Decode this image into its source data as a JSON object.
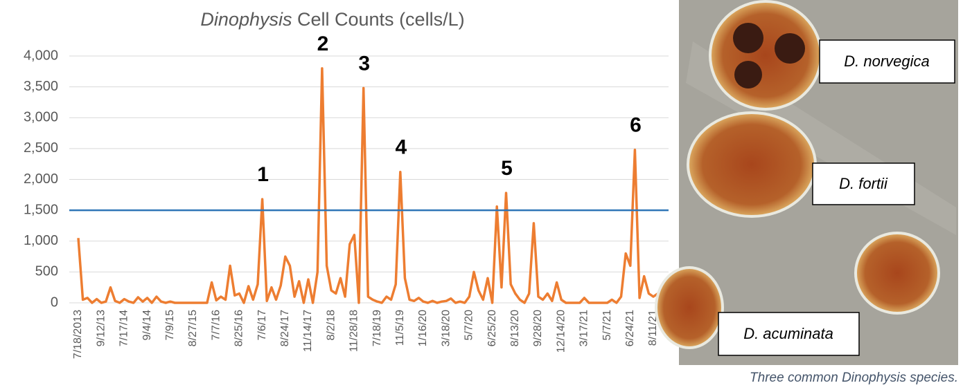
{
  "chart_data": {
    "type": "line",
    "title": {
      "italic": "Dinophysis",
      "text": "Cell Counts (cells/L)"
    },
    "categories": [
      "7/18/2013",
      null,
      null,
      null,
      null,
      "9/12/13",
      null,
      null,
      null,
      null,
      "7/17/14",
      null,
      null,
      null,
      null,
      "9/4/14",
      null,
      null,
      null,
      null,
      "7/9/15",
      null,
      null,
      null,
      null,
      "8/27/15",
      null,
      null,
      null,
      null,
      "7/7/16",
      null,
      null,
      null,
      null,
      "8/25/16",
      null,
      null,
      null,
      null,
      "7/6/17",
      null,
      null,
      null,
      null,
      "8/24/17",
      null,
      null,
      null,
      null,
      "11/14/17",
      null,
      null,
      null,
      null,
      "8/2/18",
      null,
      null,
      null,
      null,
      "11/28/18",
      null,
      null,
      null,
      null,
      "7/18/19",
      null,
      null,
      null,
      null,
      "11/5/19",
      null,
      null,
      null,
      null,
      "1/16/20",
      null,
      null,
      null,
      null,
      "3/18/20",
      null,
      null,
      null,
      null,
      "5/7/20",
      null,
      null,
      null,
      null,
      "6/25/20",
      null,
      null,
      null,
      null,
      "8/13/20",
      null,
      null,
      null,
      null,
      "9/28/20",
      null,
      null,
      null,
      null,
      "12/14/20",
      null,
      null,
      null,
      null,
      "3/17/21",
      null,
      null,
      null,
      null,
      "5/7/21",
      null,
      null,
      null,
      null,
      "6/24/21",
      null,
      null,
      null,
      null,
      "8/11/21",
      null,
      null
    ],
    "values": [
      1050,
      50,
      80,
      0,
      60,
      0,
      20,
      250,
      30,
      0,
      60,
      20,
      0,
      90,
      20,
      80,
      0,
      100,
      20,
      0,
      20,
      0,
      0,
      0,
      0,
      0,
      0,
      0,
      0,
      330,
      40,
      100,
      50,
      600,
      120,
      150,
      0,
      270,
      50,
      300,
      1680,
      30,
      250,
      50,
      280,
      750,
      600,
      100,
      350,
      0,
      380,
      0,
      500,
      3800,
      600,
      200,
      150,
      400,
      100,
      950,
      1100,
      0,
      3480,
      100,
      50,
      20,
      0,
      100,
      50,
      300,
      2120,
      400,
      50,
      30,
      80,
      20,
      0,
      30,
      0,
      20,
      30,
      70,
      0,
      20,
      0,
      100,
      500,
      200,
      50,
      400,
      0,
      1560,
      250,
      1780,
      300,
      150,
      50,
      0,
      150,
      1290,
      100,
      50,
      150,
      30,
      330,
      50,
      0,
      0,
      0,
      0,
      80,
      0,
      0,
      0,
      0,
      0,
      50,
      0,
      100,
      800,
      600,
      2480,
      80,
      430,
      150,
      100,
      150,
      200
    ],
    "color": "#ed7d31",
    "ylim": [
      0,
      4000
    ],
    "yticks": [
      0,
      500,
      {
        "value": 1000,
        "label": "1,000"
      },
      {
        "value": 1500,
        "label": "1,500"
      },
      {
        "value": 2000,
        "label": "2,000"
      },
      {
        "value": 2500,
        "label": "2,500"
      },
      {
        "value": 3000,
        "label": "3,000"
      },
      {
        "value": 3500,
        "label": "3,500"
      },
      {
        "value": 4000,
        "label": "4,000"
      }
    ],
    "grid": true,
    "threshold": {
      "value": 1500,
      "color": "#2e75b6"
    },
    "annotations": [
      "1",
      "2",
      "3",
      "4",
      "5",
      "6"
    ]
  },
  "figure": {
    "labels": [
      "D. norvegica",
      "D. fortii",
      "D. acuminata"
    ],
    "caption": "Three common Dinophysis species."
  }
}
